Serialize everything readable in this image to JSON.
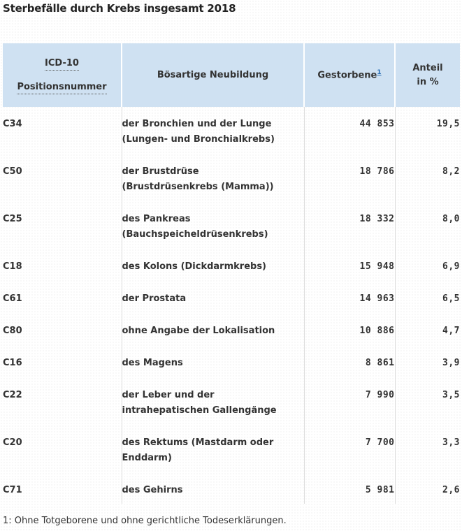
{
  "title": "Sterbefälle durch Krebs insgesamt 2018",
  "table": {
    "headers": {
      "code_line1": "ICD-10",
      "code_line2": "Positionsnummer",
      "name": "Bösartige Neubildung",
      "deaths": "Gestorbene",
      "deaths_footnote_ref": "1",
      "share_line1": "Anteil",
      "share_line2": "in %"
    },
    "rows": [
      {
        "code": "C34",
        "name_line1": "der Bronchien und der Lunge",
        "name_line2": "(Lungen- und Bronchialkrebs)",
        "deaths": "44 853",
        "share": "19,5"
      },
      {
        "code": "C50",
        "name_line1": "der Brustdrüse",
        "name_line2": "(Brustdrüsenkrebs (Mamma))",
        "deaths": "18 786",
        "share": "8,2"
      },
      {
        "code": "C25",
        "name_line1": "des Pankreas",
        "name_line2": "(Bauchspeicheldrüsenkrebs)",
        "deaths": "18 332",
        "share": "8,0"
      },
      {
        "code": "C18",
        "name_line1": "des Kolons (Dickdarmkrebs)",
        "name_line2": "",
        "deaths": "15 948",
        "share": "6,9"
      },
      {
        "code": "C61",
        "name_line1": "der Prostata",
        "name_line2": "",
        "deaths": "14 963",
        "share": "6,5"
      },
      {
        "code": "C80",
        "name_line1": "ohne Angabe der Lokalisation",
        "name_line2": "",
        "deaths": "10 886",
        "share": "4,7"
      },
      {
        "code": "C16",
        "name_line1": "des Magens",
        "name_line2": "",
        "deaths": "8 861",
        "share": "3,9"
      },
      {
        "code": "C22",
        "name_line1": "der Leber und der",
        "name_line2": "intrahepatischen Gallengänge",
        "deaths": "7 990",
        "share": "3,5"
      },
      {
        "code": "C20",
        "name_line1": "des Rektums (Mastdarm oder",
        "name_line2": "Enddarm)",
        "deaths": "7 700",
        "share": "3,3"
      },
      {
        "code": "C71",
        "name_line1": "des Gehirns",
        "name_line2": "",
        "deaths": "5 981",
        "share": "2,6"
      }
    ]
  },
  "footnote": "1: Ohne Totgeborene und ohne gerichtliche Todeserklärungen.",
  "colors": {
    "header_bg": "#cfe1f2",
    "link": "#2a6fb5",
    "text": "#333333"
  }
}
